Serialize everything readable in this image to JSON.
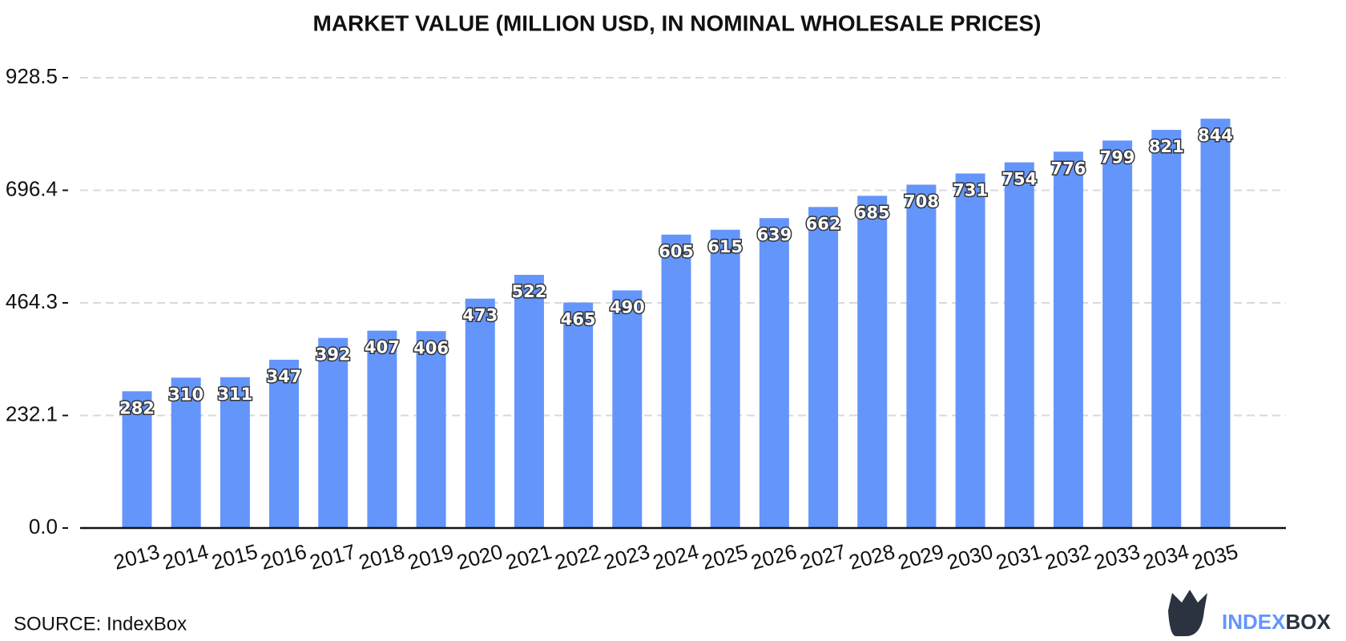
{
  "chart_data": {
    "type": "bar",
    "title": "MARKET VALUE (MILLION USD, IN NOMINAL WHOLESALE PRICES)",
    "categories": [
      "2013",
      "2014",
      "2015",
      "2016",
      "2017",
      "2018",
      "2019",
      "2020",
      "2021",
      "2022",
      "2023",
      "2024",
      "2025",
      "2026",
      "2027",
      "2028",
      "2029",
      "2030",
      "2031",
      "2032",
      "2033",
      "2034",
      "2035"
    ],
    "values": [
      282,
      310,
      311,
      347,
      392,
      407,
      406,
      473,
      522,
      465,
      490,
      605,
      615,
      639,
      662,
      685,
      708,
      731,
      754,
      776,
      799,
      821,
      844
    ],
    "color": "#6495fa",
    "ylim": [
      0,
      928.5
    ],
    "yticks": [
      {
        "value": 0,
        "label": "0.0"
      },
      232.1,
      464.3,
      696.4,
      928.5
    ],
    "grid": true,
    "source": "SOURCE: IndexBox",
    "logo": {
      "first": "INDEX",
      "second": "BOX"
    }
  }
}
